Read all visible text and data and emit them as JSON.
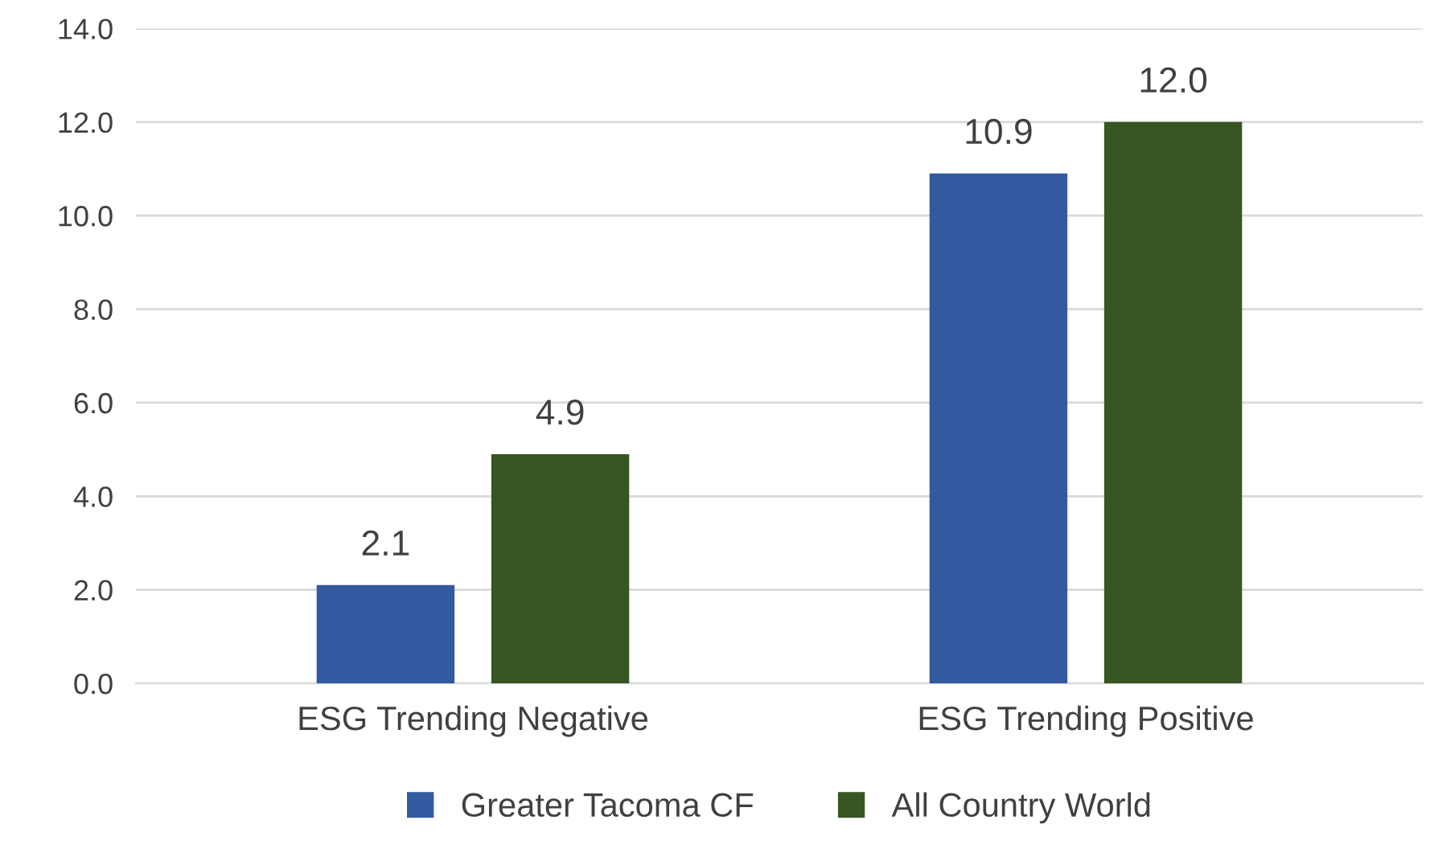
{
  "chart_data": {
    "type": "bar",
    "categories": [
      "ESG Trending Negative",
      "ESG Trending Positive"
    ],
    "series": [
      {
        "name": "Greater Tacoma CF",
        "color": "#335aa1",
        "values": [
          2.1,
          10.9
        ]
      },
      {
        "name": "All Country World",
        "color": "#375623",
        "values": [
          4.9,
          12.0
        ]
      }
    ],
    "ylim": [
      0,
      14
    ],
    "yticks": [
      {
        "value": 0,
        "label": "0.0"
      },
      {
        "value": 2,
        "label": "2.0"
      },
      {
        "value": 4,
        "label": "4.0"
      },
      {
        "value": 6,
        "label": "6.0"
      },
      {
        "value": 8,
        "label": "8.0"
      },
      {
        "value": 10,
        "label": "10.0"
      },
      {
        "value": 12,
        "label": "12.0"
      },
      {
        "value": 14,
        "label": "14.0"
      }
    ],
    "value_labels": [
      [
        "2.1",
        "10.9"
      ],
      [
        "4.9",
        "12.0"
      ]
    ],
    "grid": "y",
    "legend": "bottom"
  }
}
